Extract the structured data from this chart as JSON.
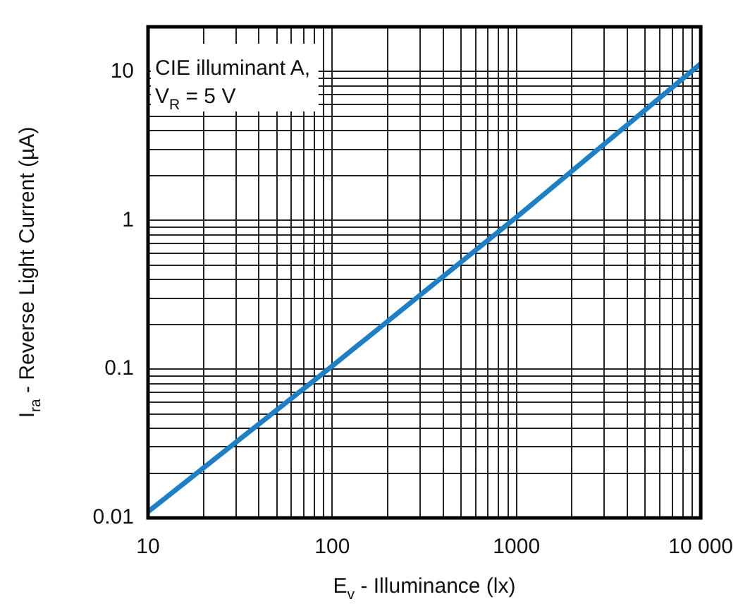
{
  "chart_data": {
    "type": "line",
    "xlabel": "E$_{v}$ - Illuminance (lx)",
    "ylabel": "I$_{ra}$ - Reverse Light Current (µA)",
    "annotations": [
      "CIE illuminant A,",
      "V$_{R}$ = 5 V"
    ],
    "x": [
      10,
      100,
      1000,
      10000
    ],
    "series": [
      {
        "color": "#1f7fc4",
        "values": [
          0.011,
          0.105,
          1.05,
          11.3
        ]
      }
    ],
    "log": "xy",
    "xlim": [
      10,
      10000
    ],
    "ylim": [
      0.01,
      20
    ],
    "xticks": [
      10,
      {
        "value": 20,
        "label": null
      },
      {
        "value": 30,
        "label": null
      },
      {
        "value": 40,
        "label": null
      },
      {
        "value": 50,
        "label": null
      },
      {
        "value": 60,
        "label": null
      },
      {
        "value": 70,
        "label": null
      },
      {
        "value": 80,
        "label": null
      },
      {
        "value": 90,
        "label": null
      },
      100,
      {
        "value": 200,
        "label": null
      },
      {
        "value": 300,
        "label": null
      },
      {
        "value": 400,
        "label": null
      },
      {
        "value": 500,
        "label": null
      },
      {
        "value": 600,
        "label": null
      },
      {
        "value": 700,
        "label": null
      },
      {
        "value": 800,
        "label": null
      },
      {
        "value": 900,
        "label": null
      },
      1000,
      {
        "value": 2000,
        "label": null
      },
      {
        "value": 3000,
        "label": null
      },
      {
        "value": 4000,
        "label": null
      },
      {
        "value": 5000,
        "label": null
      },
      {
        "value": 6000,
        "label": null
      },
      {
        "value": 7000,
        "label": null
      },
      {
        "value": 8000,
        "label": null
      },
      {
        "value": 9000,
        "label": null
      },
      {
        "value": 10000,
        "label": "10 000"
      }
    ],
    "yticks": [
      0.01,
      {
        "value": 0.02,
        "label": null
      },
      {
        "value": 0.03,
        "label": null
      },
      {
        "value": 0.04,
        "label": null
      },
      {
        "value": 0.05,
        "label": null
      },
      {
        "value": 0.06,
        "label": null
      },
      {
        "value": 0.07,
        "label": null
      },
      {
        "value": 0.08,
        "label": null
      },
      {
        "value": 0.09,
        "label": null
      },
      0.1,
      {
        "value": 0.2,
        "label": null
      },
      {
        "value": 0.3,
        "label": null
      },
      {
        "value": 0.4,
        "label": null
      },
      {
        "value": 0.5,
        "label": null
      },
      {
        "value": 0.6,
        "label": null
      },
      {
        "value": 0.7,
        "label": null
      },
      {
        "value": 0.8,
        "label": null
      },
      {
        "value": 0.9,
        "label": null
      },
      1,
      {
        "value": 2,
        "label": null
      },
      {
        "value": 3,
        "label": null
      },
      {
        "value": 4,
        "label": null
      },
      {
        "value": 5,
        "label": null
      },
      {
        "value": 6,
        "label": null
      },
      {
        "value": 7,
        "label": null
      },
      {
        "value": 8,
        "label": null
      },
      {
        "value": 9,
        "label": null
      },
      10,
      {
        "value": 20,
        "label": null
      }
    ],
    "grid": true,
    "legend": false,
    "marker": "none",
    "line_style": "solid"
  }
}
